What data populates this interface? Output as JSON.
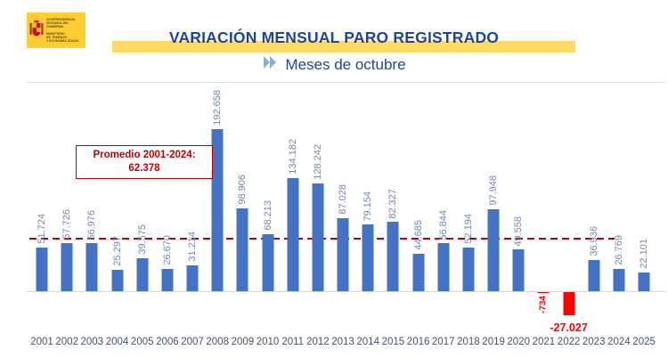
{
  "header": {
    "logo": {
      "org_line1": "VICEPRESIDENCIA",
      "org_line2": "SEGUNDA DEL GOBIERNO",
      "ministry_line1": "MINISTERIO",
      "ministry_line2": "DE TRABAJO",
      "ministry_line3": "Y ECONOMÍA SOCIAL"
    },
    "title": "VARIACIÓN MENSUAL PARO REGISTRADO",
    "subtitle": "Meses de octubre"
  },
  "annotation": {
    "line1": "Promedio 2001-2024:",
    "line2": "62.378"
  },
  "chart_data": {
    "type": "bar",
    "title": "VARIACIÓN MENSUAL PARO REGISTRADO",
    "subtitle": "Meses de octubre",
    "categories": [
      "2001",
      "2002",
      "2003",
      "2004",
      "2005",
      "2006",
      "2007",
      "2008",
      "2009",
      "2010",
      "2011",
      "2012",
      "2013",
      "2014",
      "2015",
      "2016",
      "2017",
      "2018",
      "2019",
      "2020",
      "2021",
      "2022",
      "2023",
      "2024",
      "2025"
    ],
    "values": [
      51724,
      57726,
      56976,
      25297,
      39575,
      26670,
      31214,
      192658,
      98906,
      68213,
      134182,
      128242,
      87028,
      79154,
      82327,
      44685,
      56844,
      52194,
      97948,
      49558,
      -734,
      -27027,
      36936,
      26769,
      22101
    ],
    "value_labels": [
      "51.724",
      "57.726",
      "56.976",
      "25.297",
      "39.575",
      "26.670",
      "31.214",
      "192.658",
      "98.906",
      "68.213",
      "134.182",
      "128.242",
      "87.028",
      "79.154",
      "82.327",
      "44.685",
      "56.844",
      "52.194",
      "97.948",
      "49.558",
      "-734",
      "-27.027",
      "36.936",
      "26.769",
      "22.101"
    ],
    "average_2001_2024": 62378,
    "average_label": "62.378",
    "ylim": [
      -30000,
      200000
    ],
    "legend": "none",
    "grid": "zero baseline and top gridline only, horizontal dashed average line",
    "colors": {
      "bar_positive": "#4472C4",
      "bar_negative": "#FF0000",
      "value_label": "#7486B4",
      "negative_label": "#FF0000",
      "average_line": "#C00000",
      "title": "#1D4693",
      "band": "#FFD966",
      "year_label": "#44546A"
    }
  }
}
